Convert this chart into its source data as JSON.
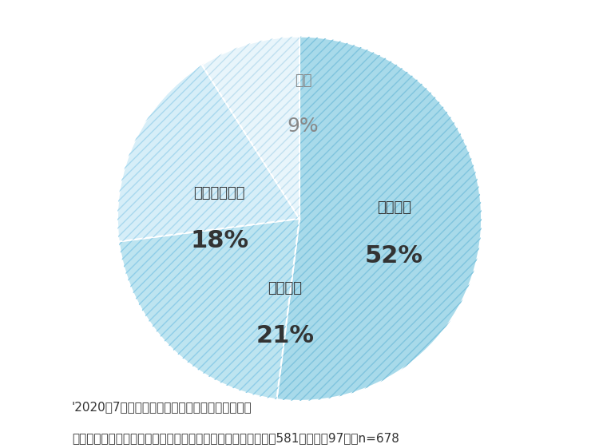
{
  "slices": [
    {
      "label": "時々ある",
      "pct_label": "52",
      "value": 52,
      "color": "#a8daea",
      "hatch": "///",
      "hatch_color": "#7fc4de",
      "text_color": "#333333"
    },
    {
      "label": "よくある",
      "pct_label": "21",
      "value": 21,
      "color": "#bde4f0",
      "hatch": "///",
      "hatch_color": "#8ecde8",
      "text_color": "#333333"
    },
    {
      "label": "ほとんどない",
      "pct_label": "18",
      "value": 18,
      "color": "#d6eef8",
      "hatch": "///",
      "hatch_color": "#a8d8ee",
      "text_color": "#333333"
    },
    {
      "label": "ない",
      "pct_label": "9",
      "value": 9,
      "color": "#e8f5fb",
      "hatch": "///",
      "hatch_color": "#c0e0f0",
      "text_color": "#888888"
    }
  ],
  "start_angle": 90,
  "background_color": "#ffffff",
  "footer_line1": "'2020年7月持田ヘルスケア（株）アンケート調査",
  "footer_line2": "（常に敏感肌である、たまに敏感肌と感じることがある　女性581名　男性97名）n=678",
  "footer_fontsize": 11,
  "label_fontsize": 13,
  "pct_fontsize": 22
}
